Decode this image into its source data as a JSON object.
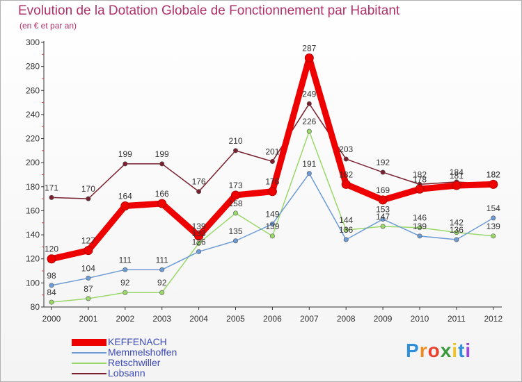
{
  "chart_data": {
    "type": "line",
    "title": "Evolution de la Dotation Globale de Fonctionnement par Habitant",
    "subtitle": "(en € et par an)",
    "xlabel": "",
    "ylabel": "",
    "ylim": [
      80,
      300
    ],
    "yticks": [
      80,
      100,
      120,
      140,
      160,
      180,
      200,
      220,
      240,
      260,
      280,
      300
    ],
    "categories": [
      "2000",
      "2001",
      "2002",
      "2003",
      "2004",
      "2005",
      "2006",
      "2007",
      "2008",
      "2009",
      "2010",
      "2011",
      "2012"
    ],
    "grid": false,
    "legend_position": "bottom-left",
    "series": [
      {
        "name": "Lobsann",
        "color": "#7a1f2e",
        "values": [
          171,
          170,
          199,
          199,
          176,
          210,
          201,
          249,
          203,
          192,
          182,
          184,
          182
        ]
      },
      {
        "name": "Retschwiller",
        "color": "#9ad86a",
        "values": [
          84,
          87,
          92,
          92,
          133,
          158,
          139,
          226,
          144,
          147,
          146,
          142,
          139
        ]
      },
      {
        "name": "Memmelshoffen",
        "color": "#6c9bd6",
        "values": [
          98,
          104,
          111,
          111,
          126,
          135,
          149,
          191,
          136,
          153,
          139,
          136,
          154
        ]
      },
      {
        "name": "KEFFENACH",
        "color": "#ee0000",
        "values": [
          120,
          127,
          164,
          166,
          139,
          173,
          176,
          287,
          182,
          169,
          178,
          181,
          182
        ]
      }
    ],
    "legend": [
      "KEFFENACH",
      "Memmelshoffen",
      "Retschwiller",
      "Lobsann"
    ]
  },
  "legend_colors": {
    "KEFFENACH": "#ee0000",
    "Memmelshoffen": "#6c9bd6",
    "Retschwiller": "#9ad86a",
    "Lobsann": "#7a1f2e"
  },
  "logo": {
    "text": "Proxiti",
    "letters": [
      "P",
      "r",
      "o",
      "x",
      "i",
      "t",
      "i"
    ],
    "colors": [
      "#2f8fd8",
      "#f08a1c",
      "#e8402a",
      "#3a9a3a",
      "#f4c21c",
      "#2f8fd8",
      "#9a4ad8"
    ]
  }
}
